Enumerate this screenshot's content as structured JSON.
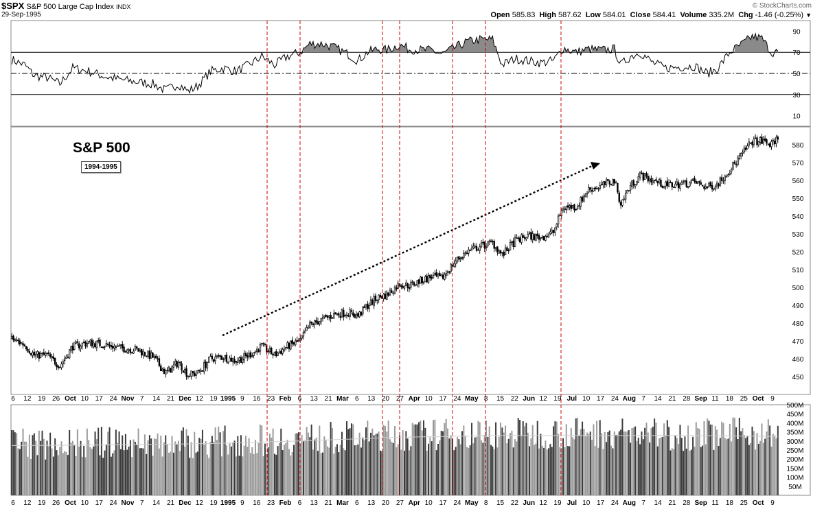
{
  "header": {
    "ticker": "$SPX",
    "name": "S&P 500 Large Cap Index",
    "exchange": "INDX",
    "date": "29-Sep-1995",
    "watermark": "© StockCharts.com",
    "open_label": "Open",
    "open": "585.83",
    "high_label": "High",
    "high": "587.62",
    "low_label": "Low",
    "low": "584.01",
    "close_label": "Close",
    "close": "584.41",
    "volume_label": "Volume",
    "volume": "335.2M",
    "chg_label": "Chg",
    "chg": "-1.46 (-0.25%)",
    "dropdown_icon": "triangle-down-icon"
  },
  "annotations": {
    "title": "S&P 500",
    "range": "1994-1995"
  },
  "chart_data": {
    "type": "candlestick",
    "x_axis_labels": [
      {
        "label": "6",
        "bold": false
      },
      {
        "label": "12",
        "bold": false
      },
      {
        "label": "19",
        "bold": false
      },
      {
        "label": "26",
        "bold": false
      },
      {
        "label": "Oct",
        "bold": true
      },
      {
        "label": "10",
        "bold": false
      },
      {
        "label": "17",
        "bold": false
      },
      {
        "label": "24",
        "bold": false
      },
      {
        "label": "Nov",
        "bold": true
      },
      {
        "label": "7",
        "bold": false
      },
      {
        "label": "14",
        "bold": false
      },
      {
        "label": "21",
        "bold": false
      },
      {
        "label": "Dec",
        "bold": true
      },
      {
        "label": "12",
        "bold": false
      },
      {
        "label": "19",
        "bold": false
      },
      {
        "label": "1995",
        "bold": true
      },
      {
        "label": "9",
        "bold": false
      },
      {
        "label": "16",
        "bold": false
      },
      {
        "label": "23",
        "bold": false
      },
      {
        "label": "Feb",
        "bold": true
      },
      {
        "label": "6",
        "bold": false
      },
      {
        "label": "13",
        "bold": false
      },
      {
        "label": "21",
        "bold": false
      },
      {
        "label": "Mar",
        "bold": true
      },
      {
        "label": "6",
        "bold": false
      },
      {
        "label": "13",
        "bold": false
      },
      {
        "label": "20",
        "bold": false
      },
      {
        "label": "27",
        "bold": false
      },
      {
        "label": "Apr",
        "bold": true
      },
      {
        "label": "10",
        "bold": false
      },
      {
        "label": "17",
        "bold": false
      },
      {
        "label": "24",
        "bold": false
      },
      {
        "label": "May",
        "bold": true
      },
      {
        "label": "8",
        "bold": false
      },
      {
        "label": "15",
        "bold": false
      },
      {
        "label": "22",
        "bold": false
      },
      {
        "label": "Jun",
        "bold": true
      },
      {
        "label": "12",
        "bold": false
      },
      {
        "label": "19",
        "bold": false
      },
      {
        "label": "Jul",
        "bold": true
      },
      {
        "label": "10",
        "bold": false
      },
      {
        "label": "17",
        "bold": false
      },
      {
        "label": "24",
        "bold": false
      },
      {
        "label": "Aug",
        "bold": true
      },
      {
        "label": "7",
        "bold": false
      },
      {
        "label": "14",
        "bold": false
      },
      {
        "label": "21",
        "bold": false
      },
      {
        "label": "28",
        "bold": false
      },
      {
        "label": "Sep",
        "bold": true
      },
      {
        "label": "11",
        "bold": false
      },
      {
        "label": "18",
        "bold": false
      },
      {
        "label": "25",
        "bold": false
      },
      {
        "label": "Oct",
        "bold": true
      },
      {
        "label": "9",
        "bold": false
      }
    ],
    "price_axis": {
      "ylim": [
        440,
        590
      ],
      "ticks": [
        450,
        460,
        470,
        480,
        490,
        500,
        510,
        520,
        530,
        540,
        550,
        560,
        570,
        580
      ]
    },
    "price_close_keypoints": [
      [
        0,
        471
      ],
      [
        8,
        468
      ],
      [
        14,
        462
      ],
      [
        22,
        462
      ],
      [
        30,
        456
      ],
      [
        38,
        467
      ],
      [
        48,
        469
      ],
      [
        58,
        468
      ],
      [
        68,
        466
      ],
      [
        78,
        465
      ],
      [
        88,
        461
      ],
      [
        96,
        452
      ],
      [
        104,
        458
      ],
      [
        110,
        451
      ],
      [
        116,
        452
      ],
      [
        124,
        460
      ],
      [
        132,
        461
      ],
      [
        140,
        459
      ],
      [
        148,
        462
      ],
      [
        156,
        467
      ],
      [
        164,
        462
      ],
      [
        172,
        467
      ],
      [
        180,
        470
      ],
      [
        186,
        479
      ],
      [
        194,
        482
      ],
      [
        202,
        485
      ],
      [
        210,
        486
      ],
      [
        216,
        484
      ],
      [
        222,
        490
      ],
      [
        228,
        494
      ],
      [
        234,
        496
      ],
      [
        242,
        502
      ],
      [
        248,
        501
      ],
      [
        256,
        504
      ],
      [
        262,
        506
      ],
      [
        268,
        505
      ],
      [
        276,
        514
      ],
      [
        284,
        520
      ],
      [
        292,
        523
      ],
      [
        300,
        525
      ],
      [
        306,
        518
      ],
      [
        314,
        526
      ],
      [
        322,
        529
      ],
      [
        330,
        528
      ],
      [
        338,
        531
      ],
      [
        344,
        545
      ],
      [
        352,
        545
      ],
      [
        360,
        555
      ],
      [
        368,
        557
      ],
      [
        376,
        560
      ],
      [
        380,
        547
      ],
      [
        386,
        557
      ],
      [
        392,
        563
      ],
      [
        400,
        560
      ],
      [
        408,
        557
      ],
      [
        416,
        558
      ],
      [
        426,
        559
      ],
      [
        434,
        556
      ],
      [
        440,
        558
      ],
      [
        448,
        566
      ],
      [
        456,
        575
      ],
      [
        462,
        582
      ],
      [
        468,
        582
      ],
      [
        474,
        580
      ],
      [
        478,
        584
      ]
    ],
    "rsi": {
      "ylim": [
        0,
        100
      ],
      "ticks": [
        10,
        30,
        50,
        70,
        90
      ],
      "overbought": 70,
      "oversold": 30,
      "midline": 50,
      "keypoints": [
        [
          0,
          63
        ],
        [
          8,
          58
        ],
        [
          14,
          48
        ],
        [
          22,
          46
        ],
        [
          30,
          40
        ],
        [
          38,
          55
        ],
        [
          48,
          52
        ],
        [
          58,
          47
        ],
        [
          68,
          44
        ],
        [
          78,
          42
        ],
        [
          88,
          40
        ],
        [
          96,
          34
        ],
        [
          104,
          40
        ],
        [
          110,
          33
        ],
        [
          116,
          38
        ],
        [
          124,
          52
        ],
        [
          132,
          55
        ],
        [
          140,
          52
        ],
        [
          148,
          58
        ],
        [
          156,
          66
        ],
        [
          164,
          58
        ],
        [
          172,
          66
        ],
        [
          180,
          70
        ],
        [
          186,
          78
        ],
        [
          194,
          78
        ],
        [
          202,
          74
        ],
        [
          210,
          68
        ],
        [
          216,
          62
        ],
        [
          222,
          70
        ],
        [
          228,
          73
        ],
        [
          234,
          72
        ],
        [
          242,
          77
        ],
        [
          248,
          73
        ],
        [
          256,
          72
        ],
        [
          262,
          72
        ],
        [
          268,
          68
        ],
        [
          276,
          74
        ],
        [
          284,
          80
        ],
        [
          292,
          82
        ],
        [
          300,
          82
        ],
        [
          306,
          58
        ],
        [
          314,
          64
        ],
        [
          322,
          62
        ],
        [
          330,
          60
        ],
        [
          338,
          62
        ],
        [
          344,
          74
        ],
        [
          352,
          70
        ],
        [
          360,
          73
        ],
        [
          368,
          72
        ],
        [
          376,
          73
        ],
        [
          380,
          58
        ],
        [
          386,
          66
        ],
        [
          392,
          70
        ],
        [
          400,
          60
        ],
        [
          408,
          55
        ],
        [
          416,
          56
        ],
        [
          426,
          57
        ],
        [
          434,
          50
        ],
        [
          440,
          54
        ],
        [
          448,
          70
        ],
        [
          456,
          78
        ],
        [
          462,
          85
        ],
        [
          468,
          83
        ],
        [
          474,
          70
        ],
        [
          478,
          70
        ]
      ]
    },
    "volume": {
      "ylim": [
        0,
        500
      ],
      "ticks": [
        {
          "v": 50,
          "label": "50M"
        },
        {
          "v": 100,
          "label": "100M"
        },
        {
          "v": 150,
          "label": "150M"
        },
        {
          "v": 200,
          "label": "200M"
        },
        {
          "v": 250,
          "label": "250M"
        },
        {
          "v": 300,
          "label": "300M"
        },
        {
          "v": 350,
          "label": "350M"
        },
        {
          "v": 400,
          "label": "400M"
        },
        {
          "v": 450,
          "label": "450M"
        },
        {
          "v": 500,
          "label": "500M"
        }
      ],
      "mean_keypoints": [
        [
          0,
          275
        ],
        [
          60,
          278
        ],
        [
          120,
          285
        ],
        [
          180,
          300
        ],
        [
          240,
          320
        ],
        [
          300,
          330
        ],
        [
          360,
          330
        ],
        [
          420,
          330
        ],
        [
          478,
          325
        ]
      ],
      "seed_baseline": [
        [
          0,
          285
        ],
        [
          60,
          290
        ],
        [
          120,
          295
        ],
        [
          180,
          310
        ],
        [
          240,
          330
        ],
        [
          300,
          340
        ],
        [
          360,
          345
        ],
        [
          420,
          335
        ],
        [
          478,
          345
        ]
      ]
    },
    "marker_dates": [
      "1995-01-16",
      "1995-02-06",
      "1995-03-20",
      "1995-03-27",
      "1995-04-24",
      "1995-05-08",
      "1995-06-19"
    ],
    "trend_arrow_label": ""
  }
}
